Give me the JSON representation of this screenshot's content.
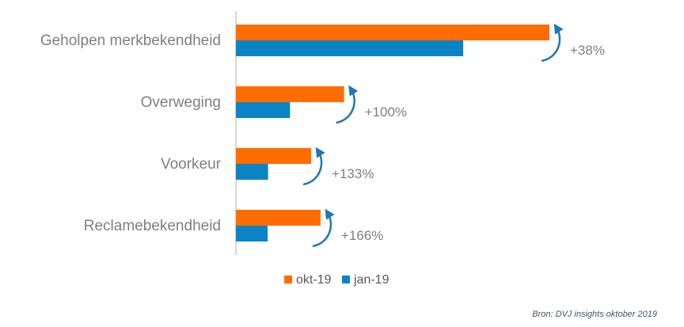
{
  "chart_data": {
    "type": "bar",
    "orientation": "horizontal",
    "title": "",
    "xlabel": "",
    "ylabel": "",
    "xlim": [
      0,
      100
    ],
    "grid": false,
    "legend_position": "bottom",
    "categories": [
      "Geholpen merkbekendheid",
      "Overweging",
      "Voorkeur",
      "Reclamebekendheid"
    ],
    "series": [
      {
        "name": "okt-19",
        "color": "#ff6d00",
        "values": [
          80,
          27.6,
          19.2,
          21.6
        ]
      },
      {
        "name": "jan-19",
        "color": "#0a84c4",
        "values": [
          58,
          13.8,
          8.2,
          8.1
        ]
      }
    ],
    "annotations": [
      "+38%",
      "+100%",
      "+133%",
      "+166%"
    ],
    "arrow_color": "#1f77b4"
  },
  "source": "Bron: DVJ insights oktober 2019"
}
